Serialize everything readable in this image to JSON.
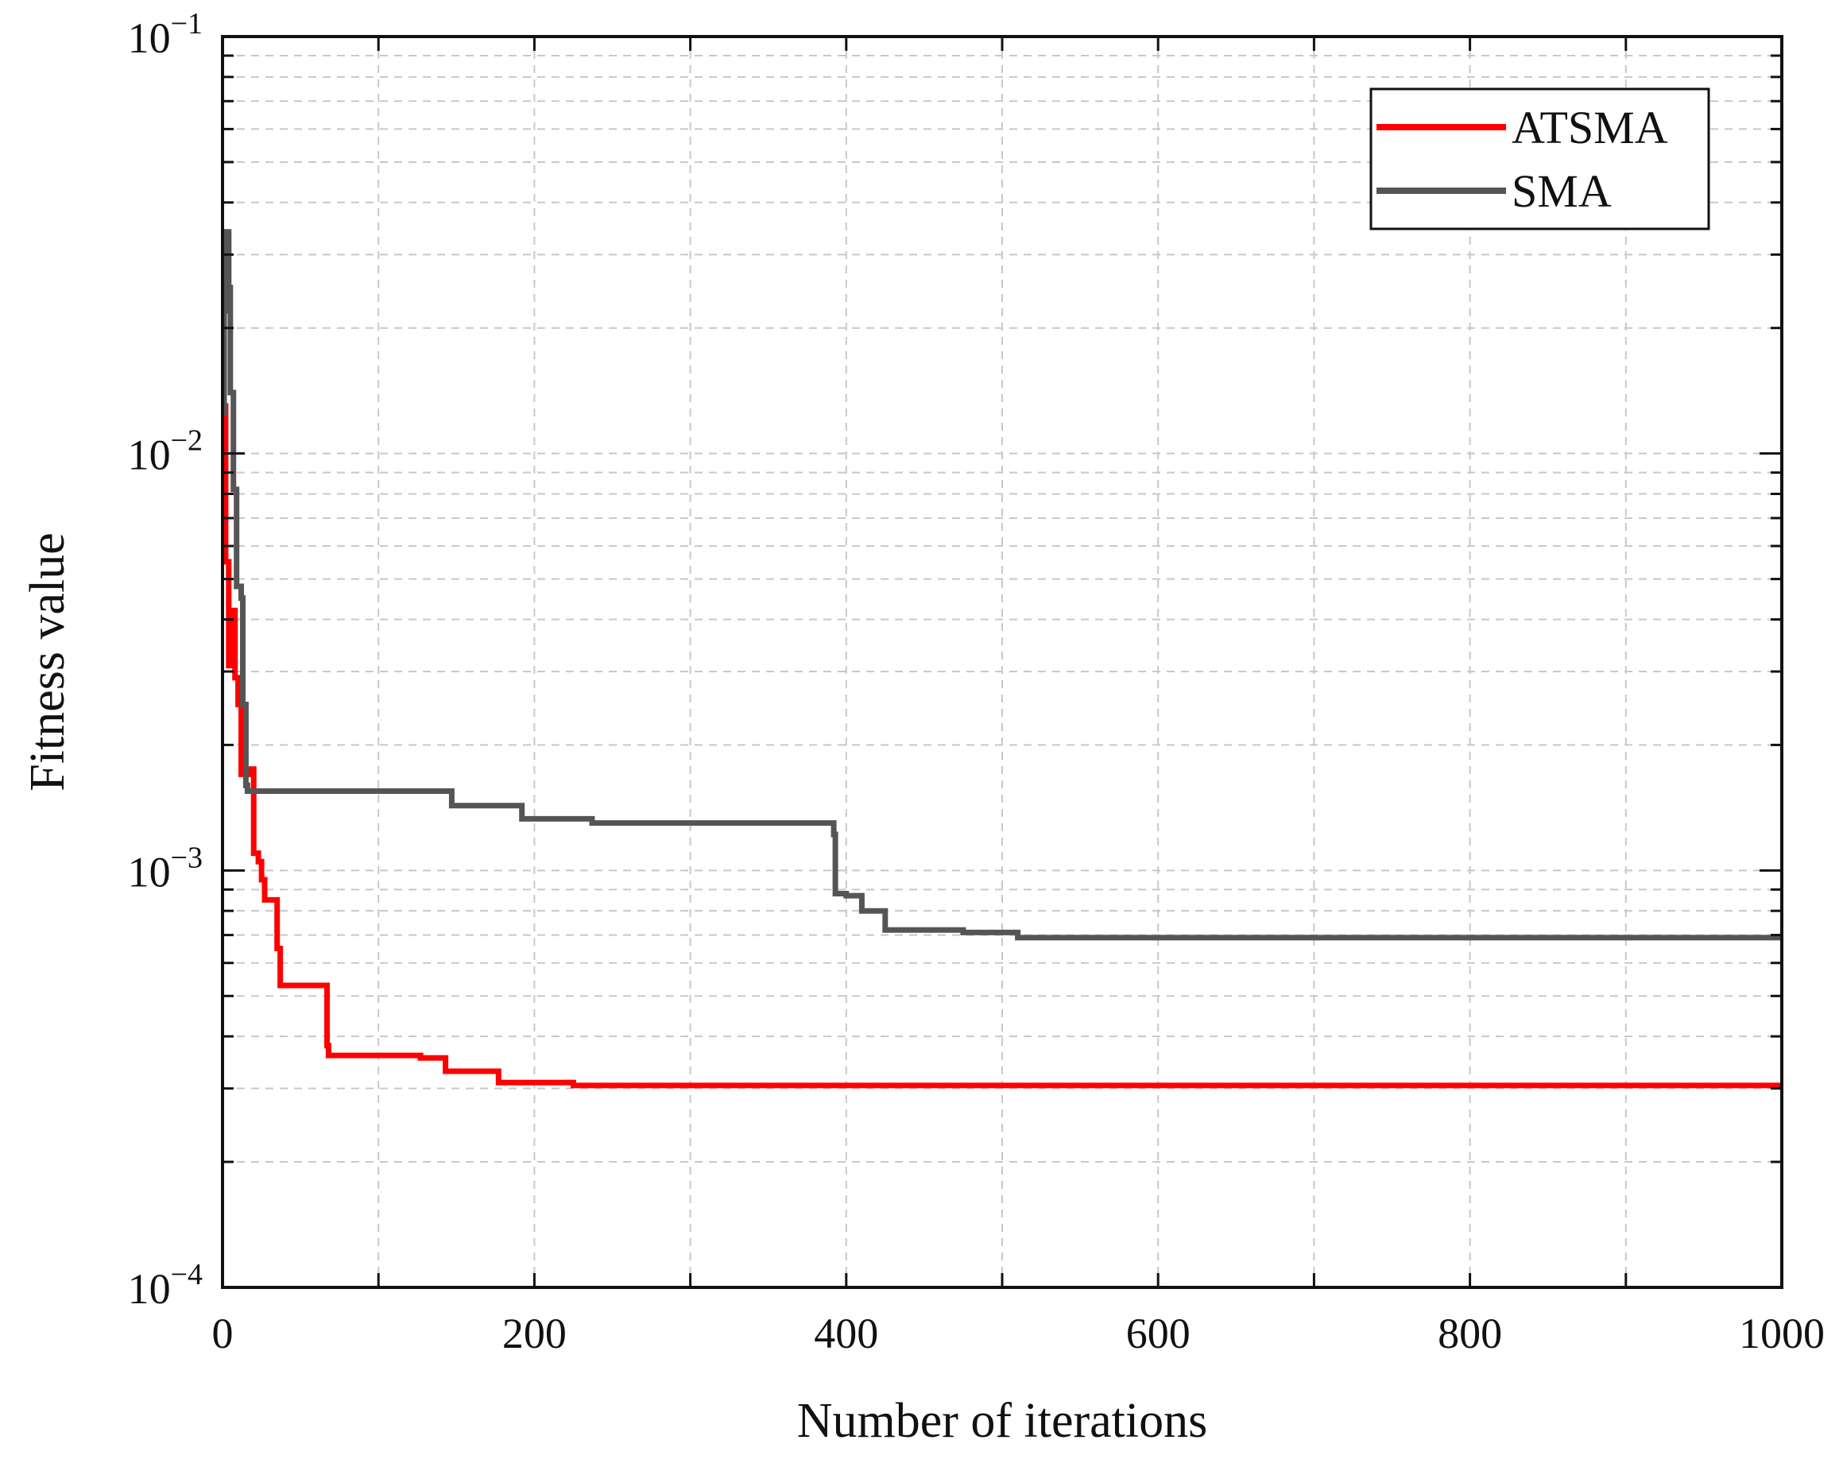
{
  "chart_data": {
    "type": "line",
    "title": "",
    "xlabel": "Number of iterations",
    "ylabel": "Fitness value",
    "xlim": [
      0,
      1000
    ],
    "ylim": [
      0.0001,
      0.1
    ],
    "yscale": "log",
    "grid": true,
    "legend_position": "top-right",
    "x_ticks": [
      {
        "value": 0,
        "label": "0"
      },
      {
        "value": 200,
        "label": "200"
      },
      {
        "value": 400,
        "label": "400"
      },
      {
        "value": 600,
        "label": "600"
      },
      {
        "value": 800,
        "label": "800"
      },
      {
        "value": 1000,
        "label": "1000"
      }
    ],
    "y_ticks": [
      {
        "value": 0.0001,
        "base": "10",
        "exp": "−4"
      },
      {
        "value": 0.001,
        "base": "10",
        "exp": "−3"
      },
      {
        "value": 0.01,
        "base": "10",
        "exp": "−2"
      },
      {
        "value": 0.1,
        "base": "10",
        "exp": "−1"
      }
    ],
    "series": [
      {
        "name": "ATSMA",
        "color": "#ff0000",
        "step": true,
        "points": [
          [
            0,
            0.013
          ],
          [
            2,
            0.0055
          ],
          [
            4,
            0.0031
          ],
          [
            6,
            0.0042
          ],
          [
            8,
            0.0029
          ],
          [
            10,
            0.0025
          ],
          [
            12,
            0.0017
          ],
          [
            18,
            0.00175
          ],
          [
            20,
            0.0011
          ],
          [
            23,
            0.00105
          ],
          [
            25,
            0.00095
          ],
          [
            27,
            0.00085
          ],
          [
            33,
            0.00085
          ],
          [
            35,
            0.00065
          ],
          [
            37,
            0.00053
          ],
          [
            65,
            0.00053
          ],
          [
            67,
            0.00038
          ],
          [
            68,
            0.00036
          ],
          [
            120,
            0.00036
          ],
          [
            127,
            0.000355
          ],
          [
            140,
            0.000355
          ],
          [
            143,
            0.00033
          ],
          [
            175,
            0.00033
          ],
          [
            177,
            0.00031
          ],
          [
            210,
            0.00031
          ],
          [
            225,
            0.000305
          ],
          [
            1000,
            0.000305
          ]
        ]
      },
      {
        "name": "SMA",
        "color": "#555555",
        "step": true,
        "points": [
          [
            0,
            0.0125
          ],
          [
            1,
            0.022
          ],
          [
            2,
            0.034
          ],
          [
            4,
            0.025
          ],
          [
            5,
            0.014
          ],
          [
            7,
            0.0082
          ],
          [
            9,
            0.0048
          ],
          [
            12,
            0.0045
          ],
          [
            13,
            0.0025
          ],
          [
            15,
            0.0016
          ],
          [
            16,
            0.00155
          ],
          [
            145,
            0.00155
          ],
          [
            147,
            0.00143
          ],
          [
            190,
            0.00143
          ],
          [
            192,
            0.00133
          ],
          [
            235,
            0.00133
          ],
          [
            237,
            0.0013
          ],
          [
            385,
            0.0013
          ],
          [
            392,
            0.00122
          ],
          [
            393,
            0.00088
          ],
          [
            400,
            0.00087
          ],
          [
            410,
            0.0008
          ],
          [
            425,
            0.00072
          ],
          [
            475,
            0.00071
          ],
          [
            510,
            0.00069
          ],
          [
            1000,
            0.00069
          ]
        ]
      }
    ]
  }
}
